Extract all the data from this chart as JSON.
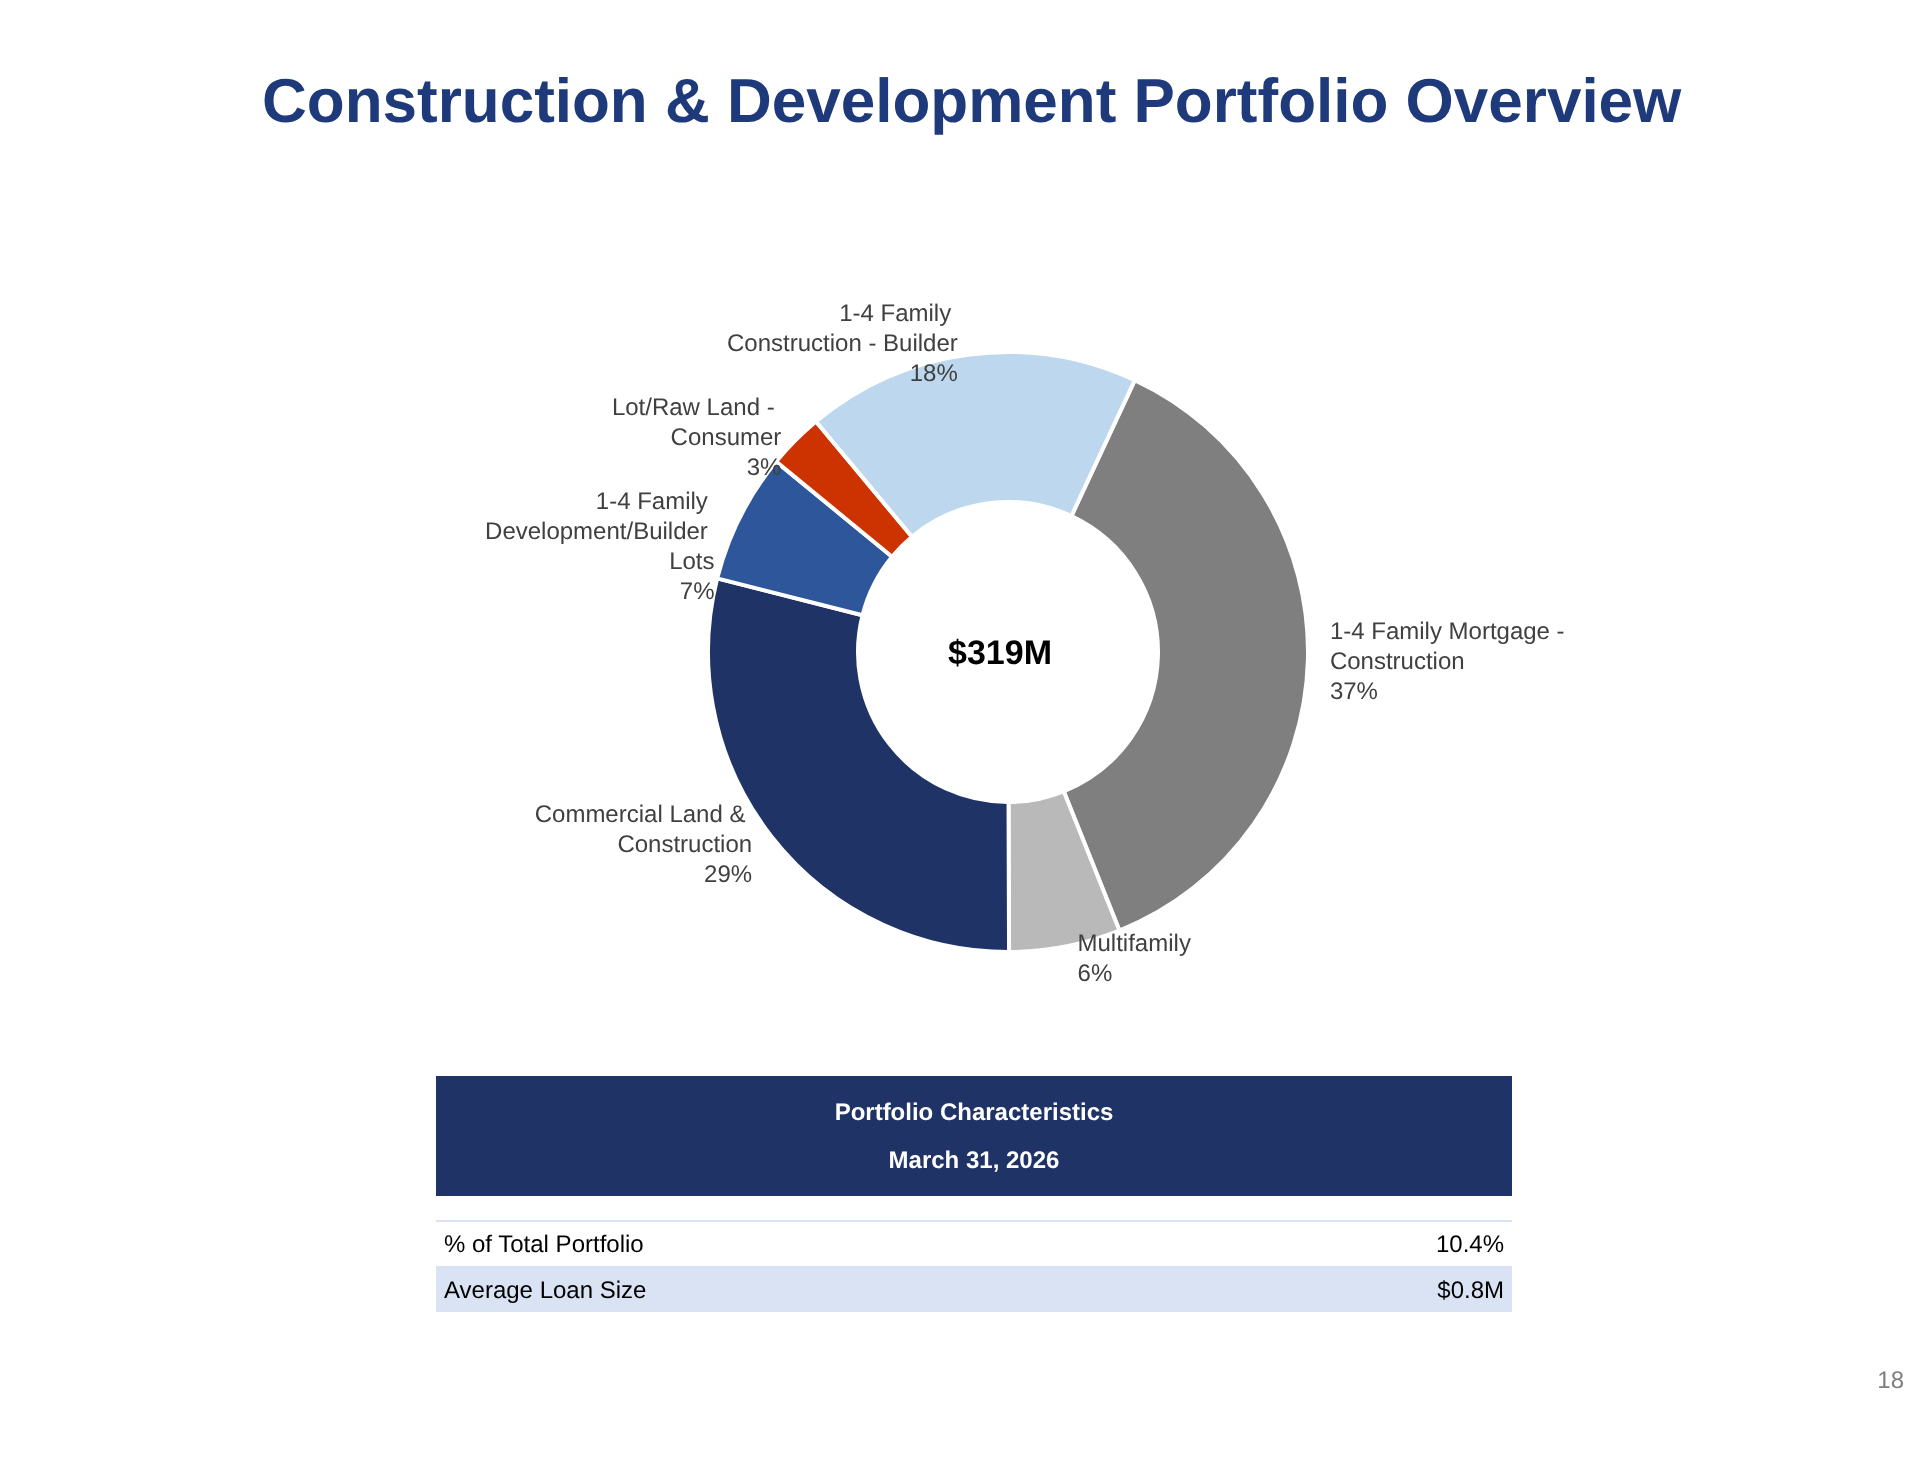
{
  "chart_data": [
    {
      "type": "donut",
      "title": "Construction & Development Portfolio Overview",
      "categories": [
        "1-4 Family Mortgage - Construction",
        "Multifamily",
        "Commercial Land & Construction",
        "1-4 Family Development/Builder Lots",
        "Lot/Raw Land - Consumer",
        "1-4 Family Construction - Builder"
      ],
      "values": [
        37,
        6,
        29,
        7,
        3,
        18
      ],
      "colors": [
        "#7f7f7f",
        "#b9b9b9",
        "#1f3366",
        "#2e579b",
        "#cc3300",
        "#bdd7ee"
      ],
      "value_labels": [
        "37%",
        "6%",
        "29%",
        "7%",
        "3%",
        "18%"
      ],
      "annotations": [
        "$319M",
        "18"
      ]
    },
    {
      "type": "other",
      "title": "Portfolio Characteristics",
      "subtitle": "March 31, 2026",
      "annotations": [
        "% of Total Portfolio",
        "10.4%",
        "Average Loan Size",
        "$0.8M"
      ]
    }
  ]
}
